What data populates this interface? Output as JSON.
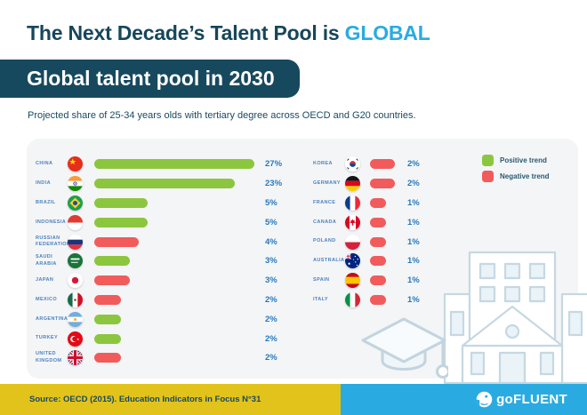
{
  "header": {
    "title_main": "The Next Decade’s Talent Pool is ",
    "title_accent": "GLOBAL",
    "badge": "Global talent pool in 2030",
    "subtitle": "Projected share of 25-34 years olds with tertiary degree across OECD and G20 countries."
  },
  "chart_data": {
    "type": "bar",
    "title": "Global talent pool in 2030",
    "subtitle": "Projected share of 25-34 years olds with tertiary degree across OECD and G20 countries.",
    "unit": "%",
    "orientation": "horizontal",
    "legend_position": "top-right",
    "legend": [
      {
        "label": "Positive trend",
        "trend": "positive"
      },
      {
        "label": "Negative trend",
        "trend": "negative"
      }
    ],
    "columns": [
      {
        "rows": [
          {
            "label": "CHINA",
            "flag": "cn",
            "value": 27,
            "trend": "positive"
          },
          {
            "label": "INDIA",
            "flag": "in",
            "value": 23,
            "trend": "positive"
          },
          {
            "label": "BRAZIL",
            "flag": "br",
            "value": 5,
            "trend": "positive"
          },
          {
            "label": "INDONESIA",
            "flag": "id",
            "value": 5,
            "trend": "positive"
          },
          {
            "label": "RUSSIAN FEDERATION",
            "flag": "ru",
            "value": 4,
            "trend": "negative"
          },
          {
            "label": "SAUDI ARABIA",
            "flag": "sa",
            "value": 3,
            "trend": "positive"
          },
          {
            "label": "JAPAN",
            "flag": "jp",
            "value": 3,
            "trend": "negative"
          },
          {
            "label": "MEXICO",
            "flag": "mx",
            "value": 2,
            "trend": "negative"
          },
          {
            "label": "ARGENTINA",
            "flag": "ar",
            "value": 2,
            "trend": "positive"
          },
          {
            "label": "TURKEY",
            "flag": "tr",
            "value": 2,
            "trend": "positive"
          },
          {
            "label": "UNITED KINGDOM",
            "flag": "gb",
            "value": 2,
            "trend": "negative"
          }
        ]
      },
      {
        "rows": [
          {
            "label": "KOREA",
            "flag": "kr",
            "value": 2,
            "trend": "negative"
          },
          {
            "label": "GERMANY",
            "flag": "de",
            "value": 2,
            "trend": "negative"
          },
          {
            "label": "FRANCE",
            "flag": "fr",
            "value": 1,
            "trend": "negative"
          },
          {
            "label": "CANADA",
            "flag": "ca",
            "value": 1,
            "trend": "negative"
          },
          {
            "label": "POLAND",
            "flag": "pl",
            "value": 1,
            "trend": "negative"
          },
          {
            "label": "AUSTRALIA",
            "flag": "au",
            "value": 1,
            "trend": "negative"
          },
          {
            "label": "SPAIN",
            "flag": "es",
            "value": 1,
            "trend": "negative"
          },
          {
            "label": "ITALY",
            "flag": "it",
            "value": 1,
            "trend": "negative"
          }
        ]
      }
    ]
  },
  "footer": {
    "source": "Source: OECD (2015). Education Indicators in Focus N°31",
    "brand_prefix": "go",
    "brand_rest": "FLUENT"
  },
  "colors": {
    "positive": "#8CC63F",
    "negative": "#F15B5C",
    "accent_blue": "#29ABE2",
    "dark_teal": "#17495E",
    "footer_yellow": "#E2C31C",
    "value_text": "#2779BD"
  }
}
